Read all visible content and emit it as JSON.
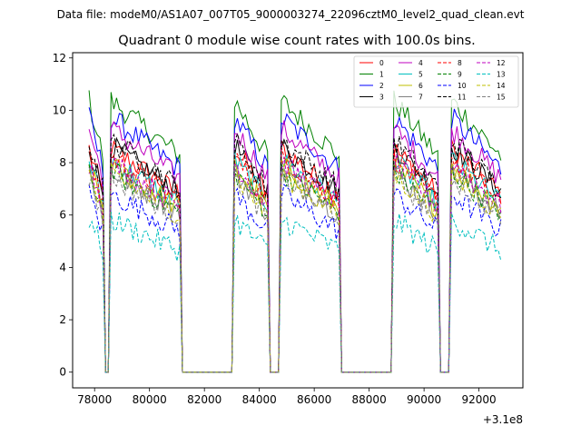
{
  "chart_data": {
    "type": "line",
    "suptitle": "Data file: modeM0/AS1A07_007T05_9000003274_22096cztM0_level2_quad_clean.evt",
    "title": "Quadrant 0 module wise count rates with 100.0s bins.",
    "xlabel": "",
    "ylabel": "",
    "x_offset_label": "+3.1e8",
    "xlim": [
      77200,
      93600
    ],
    "ylim": [
      -0.6,
      12.2
    ],
    "x_ticks": [
      78000,
      80000,
      82000,
      84000,
      86000,
      88000,
      90000,
      92000
    ],
    "x_tick_labels": [
      "78000",
      "80000",
      "82000",
      "84000",
      "86000",
      "88000",
      "90000",
      "92000"
    ],
    "y_ticks": [
      0,
      2,
      4,
      6,
      8,
      10,
      12
    ],
    "y_tick_labels": [
      "0",
      "2",
      "4",
      "6",
      "8",
      "10",
      "12"
    ],
    "legend_position": "top-right",
    "bin_size_s": 100,
    "segments": [
      {
        "start": 77800,
        "end": 78300
      },
      {
        "start": 78600,
        "end": 81100
      },
      {
        "start": 83100,
        "end": 84300
      },
      {
        "start": 84800,
        "end": 86900
      },
      {
        "start": 88900,
        "end": 90500
      },
      {
        "start": 91000,
        "end": 92800
      }
    ],
    "series": [
      {
        "name": "0",
        "level": 7.9,
        "color": "#ff0000",
        "dash": ""
      },
      {
        "name": "1",
        "level": 9.6,
        "color": "#008000",
        "dash": ""
      },
      {
        "name": "2",
        "level": 9.0,
        "color": "#0000ff",
        "dash": ""
      },
      {
        "name": "3",
        "level": 8.0,
        "color": "#000000",
        "dash": ""
      },
      {
        "name": "4",
        "level": 8.6,
        "color": "#bf00bf",
        "dash": ""
      },
      {
        "name": "5",
        "level": 7.5,
        "color": "#00bfbf",
        "dash": ""
      },
      {
        "name": "6",
        "level": 7.3,
        "color": "#bfbf00",
        "dash": ""
      },
      {
        "name": "7",
        "level": 7.1,
        "color": "#808080",
        "dash": ""
      },
      {
        "name": "8",
        "level": 7.6,
        "color": "#ff0000",
        "dash": "4,2"
      },
      {
        "name": "9",
        "level": 7.1,
        "color": "#008000",
        "dash": "4,2"
      },
      {
        "name": "10",
        "level": 6.3,
        "color": "#0000ff",
        "dash": "4,2"
      },
      {
        "name": "11",
        "level": 8.2,
        "color": "#000000",
        "dash": "4,2"
      },
      {
        "name": "12",
        "level": 7.4,
        "color": "#bf00bf",
        "dash": "4,2"
      },
      {
        "name": "13",
        "level": 5.4,
        "color": "#00bfbf",
        "dash": "4,2"
      },
      {
        "name": "14",
        "level": 7.0,
        "color": "#bfbf00",
        "dash": "4,2"
      },
      {
        "name": "15",
        "level": 6.9,
        "color": "#808080",
        "dash": "4,2"
      }
    ]
  }
}
